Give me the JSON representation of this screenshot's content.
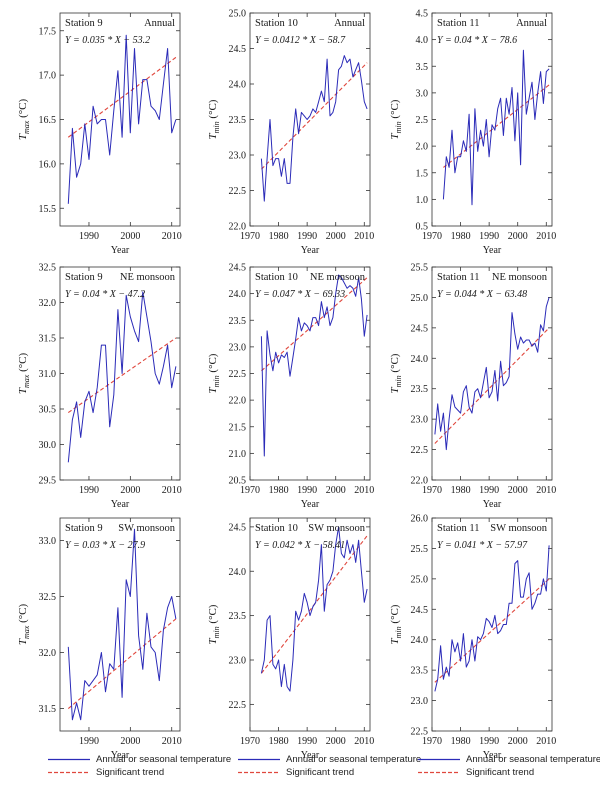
{
  "colors": {
    "series": "#2b2bb8",
    "trend": "#e0473d",
    "text": "#1a1a1a",
    "axis": "#333333"
  },
  "legend": {
    "series_label": "Annual or seasonal temperature",
    "trend_label": "Significant trend"
  },
  "chart_data": [
    {
      "type": "line",
      "station": "Station 9",
      "season": "Annual",
      "equation": "Y = 0.035 * X − 53.2",
      "ylabel_main": "T",
      "ylabel_sub": "max",
      "ylabel_unit": " (°C)",
      "xlabel": "Year",
      "xlim": [
        1983,
        2012
      ],
      "ylim": [
        15.3,
        17.7
      ],
      "xticks": [
        1990,
        2000,
        2010
      ],
      "yticks": [
        15.5,
        16.0,
        16.5,
        17.0,
        17.5
      ],
      "ytick_decimals": 1,
      "x": [
        1985,
        1986,
        1987,
        1988,
        1989,
        1990,
        1991,
        1992,
        1993,
        1994,
        1995,
        1996,
        1997,
        1998,
        1999,
        2000,
        2001,
        2002,
        2003,
        2004,
        2005,
        2006,
        2007,
        2008,
        2009,
        2010,
        2011
      ],
      "values": [
        15.55,
        16.4,
        15.85,
        16.0,
        16.45,
        16.05,
        16.65,
        16.45,
        16.5,
        16.5,
        16.1,
        16.6,
        17.05,
        16.3,
        17.45,
        16.35,
        17.3,
        16.45,
        16.95,
        16.95,
        16.65,
        16.6,
        16.5,
        16.9,
        17.3,
        16.35,
        16.5
      ],
      "trend": [
        [
          1985,
          16.3
        ],
        [
          2011,
          17.2
        ]
      ]
    },
    {
      "type": "line",
      "station": "Station 10",
      "season": "Annual",
      "equation": "Y = 0.0412 * X − 58.7",
      "ylabel_main": "T",
      "ylabel_sub": "min",
      "ylabel_unit": " (°C)",
      "xlabel": "Year",
      "xlim": [
        1970,
        2012
      ],
      "ylim": [
        22.0,
        25.0
      ],
      "xticks": [
        1970,
        1980,
        1990,
        2000,
        2010
      ],
      "yticks": [
        22.0,
        22.5,
        23.0,
        23.5,
        24.0,
        24.5,
        25.0
      ],
      "ytick_decimals": 1,
      "x": [
        1974,
        1975,
        1976,
        1977,
        1978,
        1979,
        1980,
        1981,
        1982,
        1983,
        1984,
        1985,
        1986,
        1987,
        1988,
        1989,
        1990,
        1991,
        1992,
        1993,
        1994,
        1995,
        1996,
        1997,
        1998,
        1999,
        2000,
        2001,
        2002,
        2003,
        2004,
        2005,
        2006,
        2007,
        2008,
        2009,
        2010,
        2011
      ],
      "values": [
        22.95,
        22.35,
        22.95,
        23.5,
        22.85,
        22.95,
        22.95,
        22.7,
        22.95,
        22.6,
        22.6,
        23.25,
        23.65,
        23.3,
        23.6,
        23.55,
        23.5,
        23.55,
        23.65,
        23.6,
        23.75,
        23.9,
        23.75,
        24.35,
        23.55,
        23.6,
        23.75,
        24.2,
        24.25,
        24.4,
        24.3,
        24.35,
        24.1,
        24.2,
        24.3,
        24.05,
        23.75,
        23.65
      ],
      "trend": [
        [
          1974,
          22.8
        ],
        [
          2011,
          24.3
        ]
      ]
    },
    {
      "type": "line",
      "station": "Station 11",
      "season": "Annual",
      "equation": "Y = 0.04 * X − 78.6",
      "ylabel_main": "T",
      "ylabel_sub": "min",
      "ylabel_unit": " (°C)",
      "xlabel": "Year",
      "xlim": [
        1970,
        2012
      ],
      "ylim": [
        0.5,
        4.5
      ],
      "xticks": [
        1970,
        1980,
        1990,
        2000,
        2010
      ],
      "yticks": [
        0.5,
        1.0,
        1.5,
        2.0,
        2.5,
        3.0,
        3.5,
        4.0,
        4.5
      ],
      "ytick_decimals": 1,
      "x": [
        1974,
        1975,
        1976,
        1977,
        1978,
        1979,
        1980,
        1981,
        1982,
        1983,
        1984,
        1985,
        1986,
        1987,
        1988,
        1989,
        1990,
        1991,
        1992,
        1993,
        1994,
        1995,
        1996,
        1997,
        1998,
        1999,
        2000,
        2001,
        2002,
        2003,
        2004,
        2005,
        2006,
        2007,
        2008,
        2009,
        2010,
        2011
      ],
      "values": [
        1.0,
        1.8,
        1.6,
        2.3,
        1.5,
        1.8,
        1.8,
        2.1,
        1.9,
        2.6,
        0.9,
        2.7,
        1.9,
        2.3,
        2.0,
        2.5,
        1.8,
        2.4,
        2.3,
        2.7,
        2.9,
        2.2,
        2.9,
        2.6,
        3.1,
        2.1,
        3.0,
        1.65,
        3.8,
        2.6,
        2.9,
        3.2,
        2.5,
        3.0,
        3.4,
        2.8,
        3.4,
        3.45
      ],
      "trend": [
        [
          1974,
          1.6
        ],
        [
          2011,
          3.15
        ]
      ]
    },
    {
      "type": "line",
      "station": "Station 9",
      "season": "NE monsoon",
      "equation": "Y = 0.04 * X − 47.2",
      "ylabel_main": "T",
      "ylabel_sub": "max",
      "ylabel_unit": " (°C)",
      "xlabel": "Year",
      "xlim": [
        1983,
        2012
      ],
      "ylim": [
        29.5,
        32.5
      ],
      "xticks": [
        1990,
        2000,
        2010
      ],
      "yticks": [
        29.5,
        30.0,
        30.5,
        31.0,
        31.5,
        32.0,
        32.5
      ],
      "ytick_decimals": 1,
      "x": [
        1985,
        1986,
        1987,
        1988,
        1989,
        1990,
        1991,
        1992,
        1993,
        1994,
        1995,
        1996,
        1997,
        1998,
        1999,
        2000,
        2001,
        2002,
        2003,
        2004,
        2005,
        2006,
        2007,
        2008,
        2009,
        2010,
        2011
      ],
      "values": [
        29.75,
        30.35,
        30.6,
        30.1,
        30.6,
        30.75,
        30.45,
        30.8,
        31.4,
        31.4,
        30.25,
        30.7,
        31.9,
        31.0,
        32.1,
        31.8,
        31.6,
        31.45,
        32.15,
        31.8,
        31.45,
        31.0,
        30.85,
        31.1,
        31.4,
        30.8,
        31.1
      ],
      "trend": [
        [
          1985,
          30.45
        ],
        [
          2011,
          31.5
        ]
      ]
    },
    {
      "type": "line",
      "station": "Station 10",
      "season": "NE monsoon",
      "equation": "Y = 0.047 * X − 69.33",
      "ylabel_main": "T",
      "ylabel_sub": "min",
      "ylabel_unit": " (°C)",
      "xlabel": "Year",
      "xlim": [
        1970,
        2012
      ],
      "ylim": [
        20.5,
        24.5
      ],
      "xticks": [
        1970,
        1980,
        1990,
        2000,
        2010
      ],
      "yticks": [
        20.5,
        21.0,
        21.5,
        22.0,
        22.5,
        23.0,
        23.5,
        24.0,
        24.5
      ],
      "ytick_decimals": 1,
      "x": [
        1974,
        1975,
        1976,
        1977,
        1978,
        1979,
        1980,
        1981,
        1982,
        1983,
        1984,
        1985,
        1986,
        1987,
        1988,
        1989,
        1990,
        1991,
        1992,
        1993,
        1994,
        1995,
        1996,
        1997,
        1998,
        1999,
        2000,
        2001,
        2002,
        2003,
        2004,
        2005,
        2006,
        2007,
        2008,
        2009,
        2010,
        2011
      ],
      "values": [
        23.2,
        20.95,
        23.3,
        22.85,
        22.55,
        22.9,
        22.7,
        22.85,
        22.8,
        22.9,
        22.45,
        22.8,
        23.15,
        23.55,
        23.3,
        23.45,
        23.4,
        23.3,
        23.55,
        23.55,
        23.4,
        23.85,
        23.55,
        23.75,
        23.4,
        23.55,
        24.0,
        24.35,
        24.3,
        24.2,
        24.1,
        24.15,
        24.1,
        23.95,
        24.3,
        23.9,
        23.2,
        23.6
      ],
      "trend": [
        [
          1974,
          22.55
        ],
        [
          2011,
          24.3
        ]
      ]
    },
    {
      "type": "line",
      "station": "Station 11",
      "season": "NE monsoon",
      "equation": "Y = 0.044 * X − 63.48",
      "ylabel_main": "T",
      "ylabel_sub": "min",
      "ylabel_unit": " (°C)",
      "xlabel": "Year",
      "xlim": [
        1970,
        2012
      ],
      "ylim": [
        22.0,
        25.5
      ],
      "xticks": [
        1970,
        1980,
        1990,
        2000,
        2010
      ],
      "yticks": [
        22.0,
        22.5,
        23.0,
        23.5,
        24.0,
        24.5,
        25.0,
        25.5
      ],
      "ytick_decimals": 1,
      "x": [
        1971,
        1972,
        1973,
        1974,
        1975,
        1976,
        1977,
        1978,
        1979,
        1980,
        1981,
        1982,
        1983,
        1984,
        1985,
        1986,
        1987,
        1988,
        1989,
        1990,
        1991,
        1992,
        1993,
        1994,
        1995,
        1996,
        1997,
        1998,
        1999,
        2000,
        2001,
        2002,
        2003,
        2004,
        2005,
        2006,
        2007,
        2008,
        2009,
        2010,
        2011
      ],
      "values": [
        22.75,
        23.25,
        22.8,
        23.1,
        22.5,
        23.0,
        23.4,
        23.2,
        23.15,
        23.1,
        23.45,
        23.55,
        23.2,
        23.1,
        23.45,
        23.5,
        23.35,
        23.6,
        23.85,
        23.35,
        23.45,
        23.8,
        23.3,
        23.95,
        23.55,
        23.6,
        23.7,
        24.75,
        24.4,
        24.15,
        24.35,
        24.25,
        24.3,
        24.3,
        24.2,
        24.25,
        24.1,
        24.55,
        24.45,
        24.85,
        25.0
      ],
      "trend": [
        [
          1971,
          22.6
        ],
        [
          2011,
          24.5
        ]
      ]
    },
    {
      "type": "line",
      "station": "Station 9",
      "season": "SW monsoon",
      "equation": "Y = 0.03 * X − 27.9",
      "ylabel_main": "T",
      "ylabel_sub": "max",
      "ylabel_unit": " (°C)",
      "xlabel": "Year",
      "xlim": [
        1983,
        2012
      ],
      "ylim": [
        31.3,
        33.2
      ],
      "xticks": [
        1990,
        2000,
        2010
      ],
      "yticks": [
        31.5,
        32.0,
        32.5,
        33.0
      ],
      "ytick_decimals": 1,
      "x": [
        1985,
        1986,
        1987,
        1988,
        1989,
        1990,
        1991,
        1992,
        1993,
        1994,
        1995,
        1996,
        1997,
        1998,
        1999,
        2000,
        2001,
        2002,
        2003,
        2004,
        2005,
        2006,
        2007,
        2008,
        2009,
        2010,
        2011
      ],
      "values": [
        32.05,
        31.4,
        31.55,
        31.4,
        31.75,
        31.7,
        31.75,
        31.8,
        32.0,
        31.65,
        31.9,
        31.85,
        32.4,
        31.6,
        32.65,
        32.5,
        33.1,
        32.15,
        31.85,
        32.35,
        32.05,
        32.0,
        31.75,
        32.2,
        32.4,
        32.5,
        32.3
      ],
      "trend": [
        [
          1985,
          31.5
        ],
        [
          2011,
          32.3
        ]
      ]
    },
    {
      "type": "line",
      "station": "Station 10",
      "season": "SW monsoon",
      "equation": "Y = 0.042 * X − 58.41",
      "ylabel_main": "T",
      "ylabel_sub": "min",
      "ylabel_unit": " (°C)",
      "xlabel": "Year",
      "xlim": [
        1970,
        2012
      ],
      "ylim": [
        22.2,
        24.6
      ],
      "xticks": [
        1970,
        1980,
        1990,
        2000,
        2010
      ],
      "yticks": [
        22.5,
        23.0,
        23.5,
        24.0,
        24.5
      ],
      "ytick_decimals": 1,
      "x": [
        1974,
        1975,
        1976,
        1977,
        1978,
        1979,
        1980,
        1981,
        1982,
        1983,
        1984,
        1985,
        1986,
        1987,
        1988,
        1989,
        1990,
        1991,
        1992,
        1993,
        1994,
        1995,
        1996,
        1997,
        1998,
        1999,
        2000,
        2001,
        2002,
        2003,
        2004,
        2005,
        2006,
        2007,
        2008,
        2009,
        2010,
        2011
      ],
      "values": [
        22.85,
        23.0,
        23.45,
        23.5,
        22.95,
        22.9,
        23.0,
        22.7,
        22.95,
        22.7,
        22.65,
        23.0,
        23.55,
        23.45,
        23.55,
        23.75,
        23.65,
        23.5,
        23.6,
        23.65,
        23.9,
        24.3,
        23.55,
        23.85,
        23.9,
        24.0,
        24.3,
        24.5,
        24.2,
        24.15,
        24.35,
        24.2,
        24.3,
        24.1,
        24.35,
        24.0,
        23.65,
        23.8
      ],
      "trend": [
        [
          1974,
          22.85
        ],
        [
          2011,
          24.4
        ]
      ]
    },
    {
      "type": "line",
      "station": "Station 11",
      "season": "SW monsoon",
      "equation": "Y = 0.041 * X − 57.97",
      "ylabel_main": "T",
      "ylabel_sub": "min",
      "ylabel_unit": " (°C)",
      "xlabel": "Year",
      "xlim": [
        1970,
        2012
      ],
      "ylim": [
        22.5,
        26.0
      ],
      "xticks": [
        1970,
        1980,
        1990,
        2000,
        2010
      ],
      "yticks": [
        22.5,
        23.0,
        23.5,
        24.0,
        24.5,
        25.0,
        25.5,
        26.0
      ],
      "ytick_decimals": 1,
      "x": [
        1971,
        1972,
        1973,
        1974,
        1975,
        1976,
        1977,
        1978,
        1979,
        1980,
        1981,
        1982,
        1983,
        1984,
        1985,
        1986,
        1987,
        1988,
        1989,
        1990,
        1991,
        1992,
        1993,
        1994,
        1995,
        1996,
        1997,
        1998,
        1999,
        2000,
        2001,
        2002,
        2003,
        2004,
        2005,
        2006,
        2007,
        2008,
        2009,
        2010,
        2011
      ],
      "values": [
        23.15,
        23.35,
        23.9,
        23.35,
        23.55,
        23.4,
        24.0,
        23.8,
        23.95,
        23.65,
        24.1,
        23.55,
        23.65,
        24.0,
        23.65,
        24.05,
        24.0,
        24.1,
        24.35,
        24.3,
        24.2,
        24.4,
        24.1,
        24.15,
        24.25,
        24.25,
        24.6,
        24.6,
        25.25,
        25.3,
        24.7,
        24.7,
        25.0,
        25.1,
        24.5,
        24.6,
        24.75,
        24.75,
        25.0,
        24.8,
        25.55
      ],
      "trend": [
        [
          1971,
          23.3
        ],
        [
          2011,
          25.0
        ]
      ]
    }
  ]
}
